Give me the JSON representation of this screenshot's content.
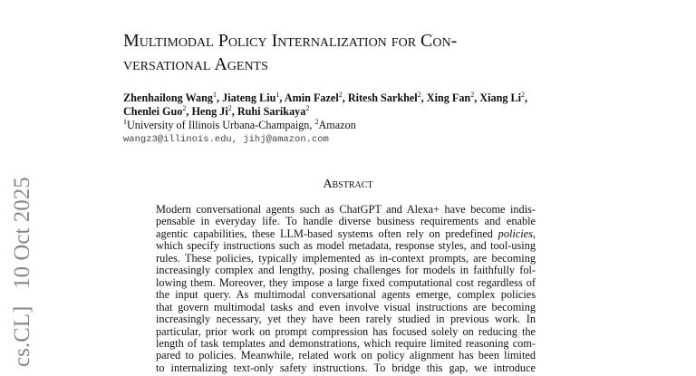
{
  "stamp": "cs.CL]   10 Oct 2025",
  "title": {
    "line1": "Multimodal Policy Internalization for Con-",
    "line2": "versational Agents"
  },
  "authors": [
    {
      "name": "Zhenhailong Wang",
      "aff": "1"
    },
    {
      "name": "Jiateng Liu",
      "aff": "1"
    },
    {
      "name": "Amin Fazel",
      "aff": "2"
    },
    {
      "name": "Ritesh Sarkhel",
      "aff": "2"
    },
    {
      "name": "Xing Fan",
      "aff": "2"
    },
    {
      "name": "Xiang Li",
      "aff": "2"
    },
    {
      "name": "Chenlei Guo",
      "aff": "2"
    },
    {
      "name": "Heng Ji",
      "aff": "2"
    },
    {
      "name": "Ruhi Sarikaya",
      "aff": "2"
    }
  ],
  "affiliations": {
    "a1_num": "1",
    "a1": "University of Illinois Urbana-Champaign, ",
    "a2_num": "2",
    "a2": "Amazon"
  },
  "emails": "wangz3@illinois.edu, jihj@amazon.com",
  "abstract": {
    "heading": "Abstract",
    "lines": [
      "Modern conversational agents such as ChatGPT and Alexa+ have become indis-",
      "pensable in everyday life. To handle diverse business requirements and enable",
      "agentic capabilities, these LLM-based systems often rely on predefined ",
      "which specify instructions such as model metadata, response styles, and tool-using",
      "rules. These policies, typically implemented as in-context prompts, are becoming",
      "increasingly complex and lengthy, posing challenges for models in faithfully fol-",
      "lowing them. Moreover, they impose a large fixed computational cost regardless of",
      "the input query. As multimodal conversational agents emerge, complex policies",
      "that govern multimodal tasks and even involve visual instructions are becoming",
      "increasingly necessary, yet they have been rarely studied in previous work. In",
      "particular, prior work on prompt compression has focused solely on reducing the",
      "length of task templates and demonstrations, which require limited reasoning com-",
      "pared to policies. Meanwhile, related work on policy alignment has been limited",
      "to internalizing text-only safety instructions. To bridge this gap, we introduce"
    ],
    "italic_word": "policies",
    "italic_after": ","
  }
}
